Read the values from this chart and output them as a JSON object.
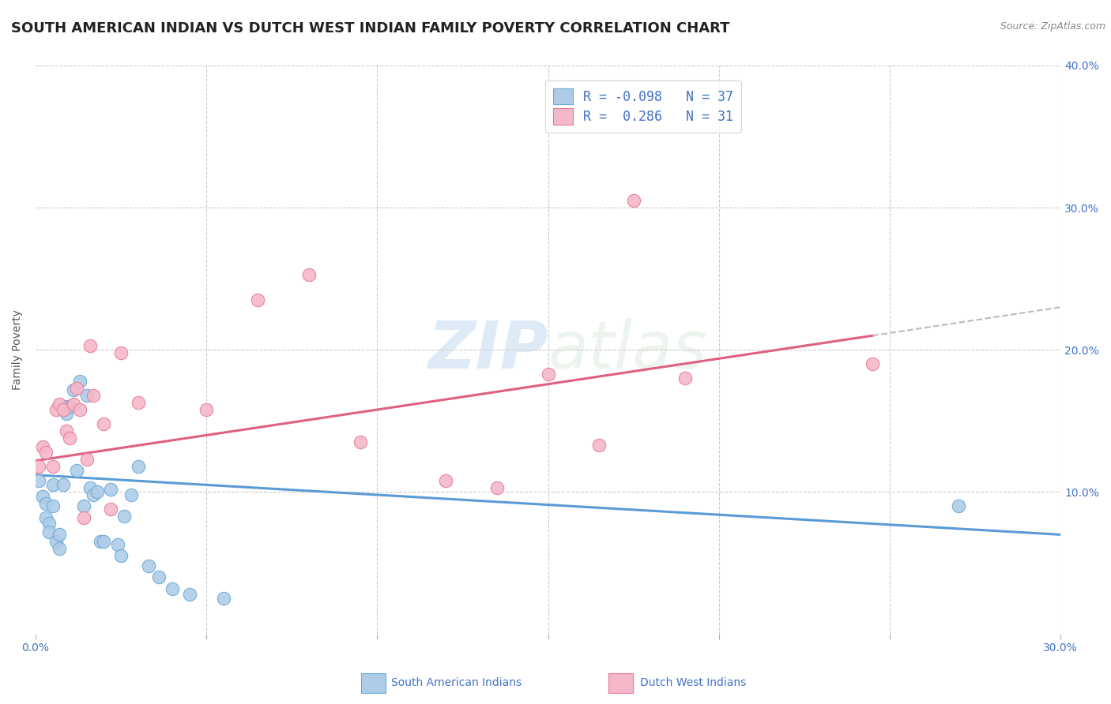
{
  "title": "SOUTH AMERICAN INDIAN VS DUTCH WEST INDIAN FAMILY POVERTY CORRELATION CHART",
  "source": "Source: ZipAtlas.com",
  "ylabel": "Family Poverty",
  "xlim": [
    0.0,
    0.3
  ],
  "ylim": [
    0.0,
    0.4
  ],
  "blue_color": "#aecce8",
  "pink_color": "#f5b8c8",
  "blue_edge_color": "#6aaad4",
  "pink_edge_color": "#e87a9a",
  "blue_line_color": "#5b9bd5",
  "pink_line_color": "#e06080",
  "dash_line_color": "#bbbbbb",
  "legend_text_color": "#4472c4",
  "blue_R": -0.098,
  "blue_N": 37,
  "pink_R": 0.286,
  "pink_N": 31,
  "blue_scatter_x": [
    0.001,
    0.002,
    0.003,
    0.003,
    0.004,
    0.004,
    0.005,
    0.005,
    0.006,
    0.007,
    0.007,
    0.008,
    0.009,
    0.009,
    0.01,
    0.011,
    0.012,
    0.013,
    0.014,
    0.015,
    0.016,
    0.017,
    0.018,
    0.019,
    0.02,
    0.022,
    0.024,
    0.025,
    0.026,
    0.028,
    0.03,
    0.033,
    0.036,
    0.04,
    0.045,
    0.055,
    0.27
  ],
  "blue_scatter_y": [
    0.108,
    0.097,
    0.092,
    0.082,
    0.078,
    0.072,
    0.09,
    0.105,
    0.065,
    0.07,
    0.06,
    0.105,
    0.155,
    0.16,
    0.16,
    0.172,
    0.115,
    0.178,
    0.09,
    0.168,
    0.103,
    0.098,
    0.1,
    0.065,
    0.065,
    0.102,
    0.063,
    0.055,
    0.083,
    0.098,
    0.118,
    0.048,
    0.04,
    0.032,
    0.028,
    0.025,
    0.09
  ],
  "pink_scatter_x": [
    0.001,
    0.002,
    0.003,
    0.005,
    0.006,
    0.007,
    0.008,
    0.009,
    0.01,
    0.011,
    0.012,
    0.013,
    0.014,
    0.015,
    0.016,
    0.017,
    0.02,
    0.022,
    0.025,
    0.03,
    0.05,
    0.065,
    0.08,
    0.095,
    0.12,
    0.135,
    0.15,
    0.165,
    0.175,
    0.19,
    0.245
  ],
  "pink_scatter_y": [
    0.118,
    0.132,
    0.128,
    0.118,
    0.158,
    0.162,
    0.158,
    0.143,
    0.138,
    0.162,
    0.173,
    0.158,
    0.082,
    0.123,
    0.203,
    0.168,
    0.148,
    0.088,
    0.198,
    0.163,
    0.158,
    0.235,
    0.253,
    0.135,
    0.108,
    0.103,
    0.183,
    0.133,
    0.305,
    0.18,
    0.19
  ],
  "blue_trend_x0": 0.0,
  "blue_trend_y0": 0.112,
  "blue_trend_x1": 0.3,
  "blue_trend_y1": 0.07,
  "pink_trend_x0": 0.0,
  "pink_trend_y0": 0.122,
  "pink_trend_x1": 0.245,
  "pink_trend_y1": 0.21,
  "dash_trend_x0": 0.245,
  "dash_trend_y0": 0.21,
  "dash_trend_x1": 0.3,
  "dash_trend_y1": 0.23,
  "watermark_zip": "ZIP",
  "watermark_atlas": "atlas",
  "grid_color": "#cccccc",
  "background_color": "#ffffff",
  "title_fontsize": 13,
  "axis_label_fontsize": 10,
  "tick_fontsize": 10,
  "legend_fontsize": 12
}
